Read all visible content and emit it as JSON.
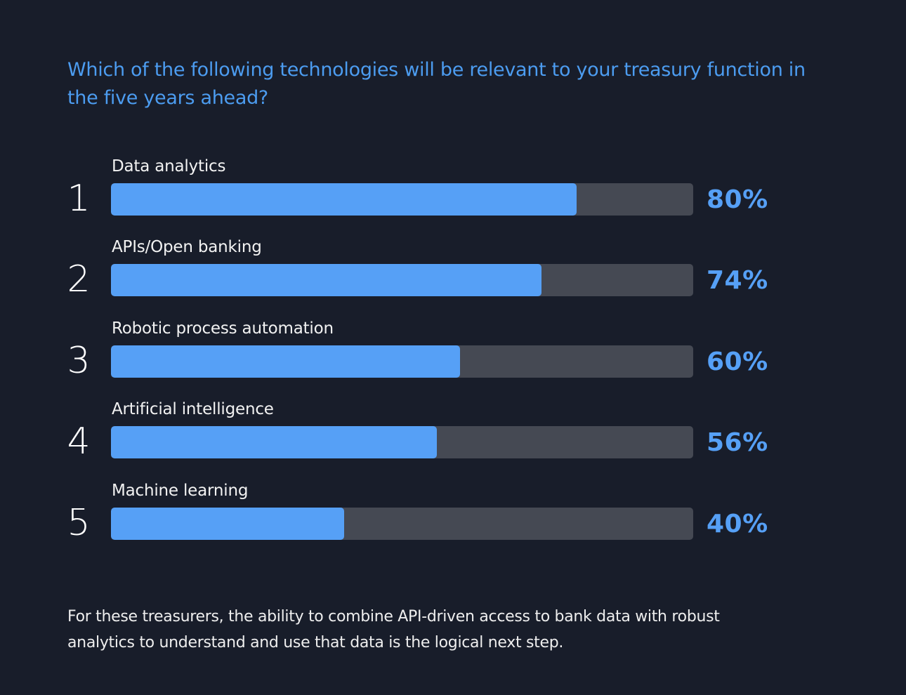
{
  "header": {
    "question": "Which of the following technologies will be relevant to your treasury function in the five years ahead?"
  },
  "colors": {
    "background": "#181d2a",
    "accent": "#56a0f6",
    "question_text": "#4c9cf0",
    "track": "#454953",
    "label_text": "#f2f2f2"
  },
  "rows": [
    {
      "rank": "1",
      "label": "Data analytics",
      "value": 80,
      "value_label": "80%"
    },
    {
      "rank": "2",
      "label": "APIs/Open banking",
      "value": 74,
      "value_label": "74%"
    },
    {
      "rank": "3",
      "label": "Robotic process automation",
      "value": 60,
      "value_label": "60%"
    },
    {
      "rank": "4",
      "label": "Artificial intelligence",
      "value": 56,
      "value_label": "56%"
    },
    {
      "rank": "5",
      "label": "Machine learning",
      "value": 40,
      "value_label": "40%"
    }
  ],
  "footer": {
    "note": "For these treasurers, the ability to combine API-driven access to bank data with robust analytics to understand and use that data is the logical next step."
  },
  "chart_data": {
    "type": "bar",
    "orientation": "horizontal",
    "title": "Which of the following technologies will be relevant to your treasury function in the five years ahead?",
    "categories": [
      "Data analytics",
      "APIs/Open banking",
      "Robotic process automation",
      "Artificial intelligence",
      "Machine learning"
    ],
    "values": [
      80,
      74,
      60,
      56,
      40
    ],
    "value_labels": [
      "80%",
      "74%",
      "60%",
      "56%",
      "40%"
    ],
    "ranks": [
      1,
      2,
      3,
      4,
      5
    ],
    "xlabel": "",
    "ylabel": "",
    "xlim": [
      0,
      100
    ],
    "unit": "%",
    "grid": false,
    "legend": null,
    "annotation": "For these treasurers, the ability to combine API-driven access to bank data with robust analytics to understand and use that data is the logical next step."
  }
}
